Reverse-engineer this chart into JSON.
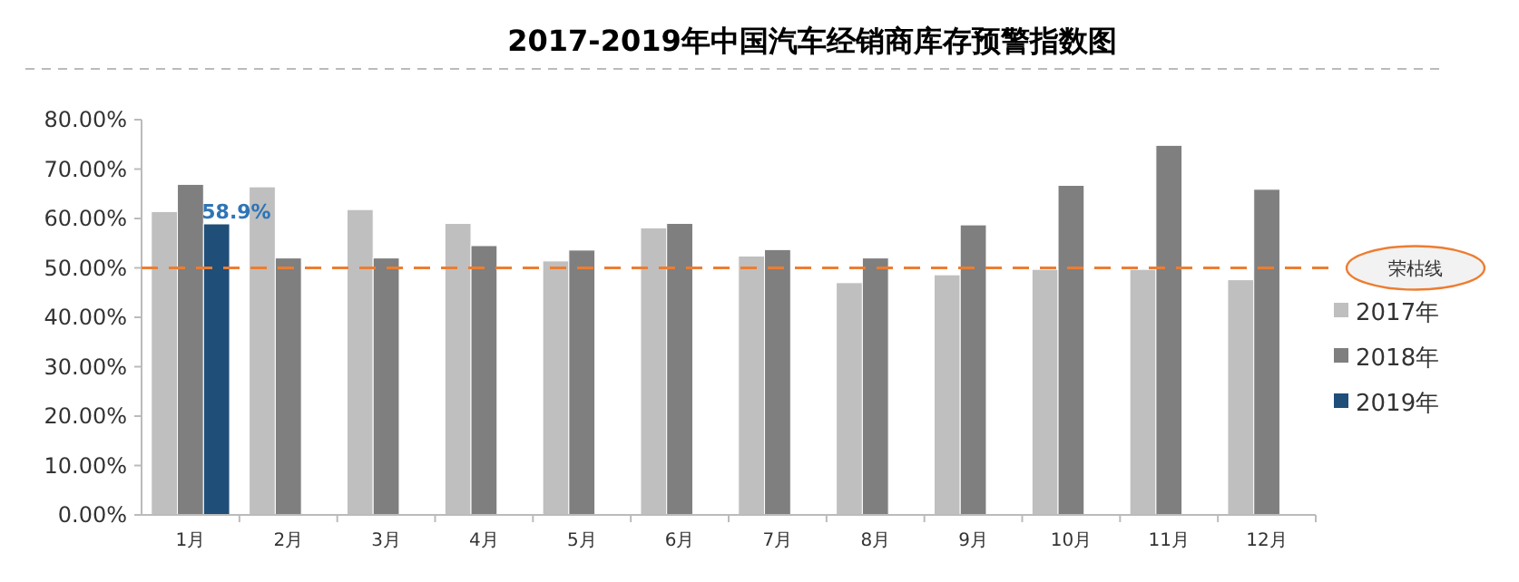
{
  "chart_data": {
    "type": "bar",
    "title": "2017-2019年中国汽车经销商库存预警指数图",
    "categories": [
      "1月",
      "2月",
      "3月",
      "4月",
      "5月",
      "6月",
      "7月",
      "8月",
      "9月",
      "10月",
      "11月",
      "12月"
    ],
    "series": [
      {
        "name": "2017年",
        "color": "#bfbfbf",
        "values": [
          61.4,
          66.4,
          61.8,
          59.0,
          51.4,
          58.1,
          52.4,
          47.0,
          48.6,
          49.7,
          49.7,
          47.6
        ]
      },
      {
        "name": "2018年",
        "color": "#7f7f7f",
        "values": [
          66.9,
          52.0,
          52.0,
          54.5,
          53.6,
          59.0,
          53.7,
          52.0,
          58.7,
          66.7,
          74.8,
          65.9
        ]
      },
      {
        "name": "2019年",
        "color": "#1f4e79",
        "values": [
          58.9,
          null,
          null,
          null,
          null,
          null,
          null,
          null,
          null,
          null,
          null,
          null
        ],
        "value_labels": [
          "58.9%",
          null,
          null,
          null,
          null,
          null,
          null,
          null,
          null,
          null,
          null,
          null
        ]
      }
    ],
    "ylim": [
      0,
      80
    ],
    "yticks": [
      {
        "value": 0,
        "label": "0.00%"
      },
      {
        "value": 10,
        "label": "10.00%"
      },
      {
        "value": 20,
        "label": "20.00%"
      },
      {
        "value": 30,
        "label": "30.00%"
      },
      {
        "value": 40,
        "label": "40.00%"
      },
      {
        "value": 50,
        "label": "50.00%"
      },
      {
        "value": 60,
        "label": "60.00%"
      },
      {
        "value": 70,
        "label": "70.00%"
      },
      {
        "value": 80,
        "label": "80.00%"
      }
    ],
    "ref_lines": [
      {
        "axis": "y",
        "value": 50,
        "label": "荣枯线",
        "color": "#ed7d31",
        "line_style": "dashed"
      }
    ],
    "grid": false,
    "legend": "right"
  }
}
